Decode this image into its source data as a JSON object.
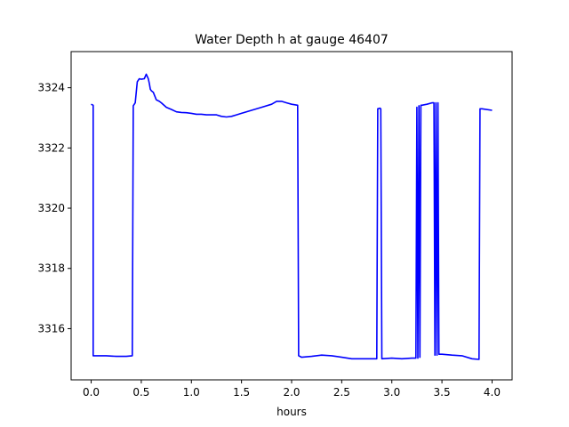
{
  "chart_data": {
    "type": "line",
    "title": "Water Depth h at gauge 46407",
    "xlabel": "hours",
    "ylabel": "",
    "xlim": [
      -0.2,
      4.2
    ],
    "ylim": [
      3314.3,
      3325.2
    ],
    "xticks": [
      0.0,
      0.5,
      1.0,
      1.5,
      2.0,
      2.5,
      3.0,
      3.5,
      4.0
    ],
    "xtick_labels": [
      "0.0",
      "0.5",
      "1.0",
      "1.5",
      "2.0",
      "2.5",
      "3.0",
      "3.5",
      "4.0"
    ],
    "yticks": [
      3316,
      3318,
      3320,
      3322,
      3324
    ],
    "ytick_labels": [
      "3316",
      "3318",
      "3320",
      "3322",
      "3324"
    ],
    "grid": false,
    "series": [
      {
        "color": "#0000ff",
        "x": [
          0.0,
          0.02,
          0.02,
          0.15,
          0.25,
          0.35,
          0.41,
          0.42,
          0.44,
          0.46,
          0.48,
          0.5,
          0.53,
          0.55,
          0.57,
          0.58,
          0.59,
          0.6,
          0.62,
          0.65,
          0.68,
          0.7,
          0.75,
          0.8,
          0.85,
          0.9,
          0.95,
          1.0,
          1.05,
          1.1,
          1.15,
          1.2,
          1.25,
          1.3,
          1.35,
          1.4,
          1.45,
          1.5,
          1.6,
          1.7,
          1.8,
          1.85,
          1.9,
          1.95,
          2.0,
          2.06,
          2.07,
          2.1,
          2.2,
          2.3,
          2.4,
          2.5,
          2.6,
          2.7,
          2.8,
          2.85,
          2.86,
          2.88,
          2.89,
          2.9,
          3.0,
          3.1,
          3.2,
          3.24,
          3.25,
          3.26,
          3.27,
          3.28,
          3.29,
          3.3,
          3.35,
          3.4,
          3.42,
          3.43,
          3.44,
          3.45,
          3.46,
          3.47,
          3.5,
          3.6,
          3.7,
          3.8,
          3.87,
          3.88,
          3.9,
          4.0
        ],
        "y": [
          3323.45,
          3323.42,
          3315.1,
          3315.1,
          3315.08,
          3315.08,
          3315.1,
          3323.4,
          3323.5,
          3324.2,
          3324.3,
          3324.28,
          3324.3,
          3324.45,
          3324.3,
          3324.15,
          3323.95,
          3323.9,
          3323.85,
          3323.6,
          3323.55,
          3323.5,
          3323.35,
          3323.28,
          3323.2,
          3323.18,
          3323.17,
          3323.15,
          3323.12,
          3323.12,
          3323.1,
          3323.1,
          3323.1,
          3323.05,
          3323.03,
          3323.05,
          3323.1,
          3323.15,
          3323.25,
          3323.35,
          3323.45,
          3323.55,
          3323.55,
          3323.5,
          3323.45,
          3323.42,
          3315.1,
          3315.05,
          3315.08,
          3315.12,
          3315.1,
          3315.05,
          3315.0,
          3315.0,
          3315.0,
          3315.0,
          3323.3,
          3323.32,
          3323.3,
          3315.0,
          3315.02,
          3315.0,
          3315.02,
          3315.02,
          3323.35,
          3315.02,
          3323.4,
          3315.05,
          3323.42,
          3323.42,
          3323.45,
          3323.5,
          3323.5,
          3315.12,
          3323.5,
          3315.12,
          3323.5,
          3315.15,
          3315.15,
          3315.12,
          3315.1,
          3315.0,
          3314.98,
          3323.3,
          3323.3,
          3323.25
        ]
      }
    ]
  }
}
